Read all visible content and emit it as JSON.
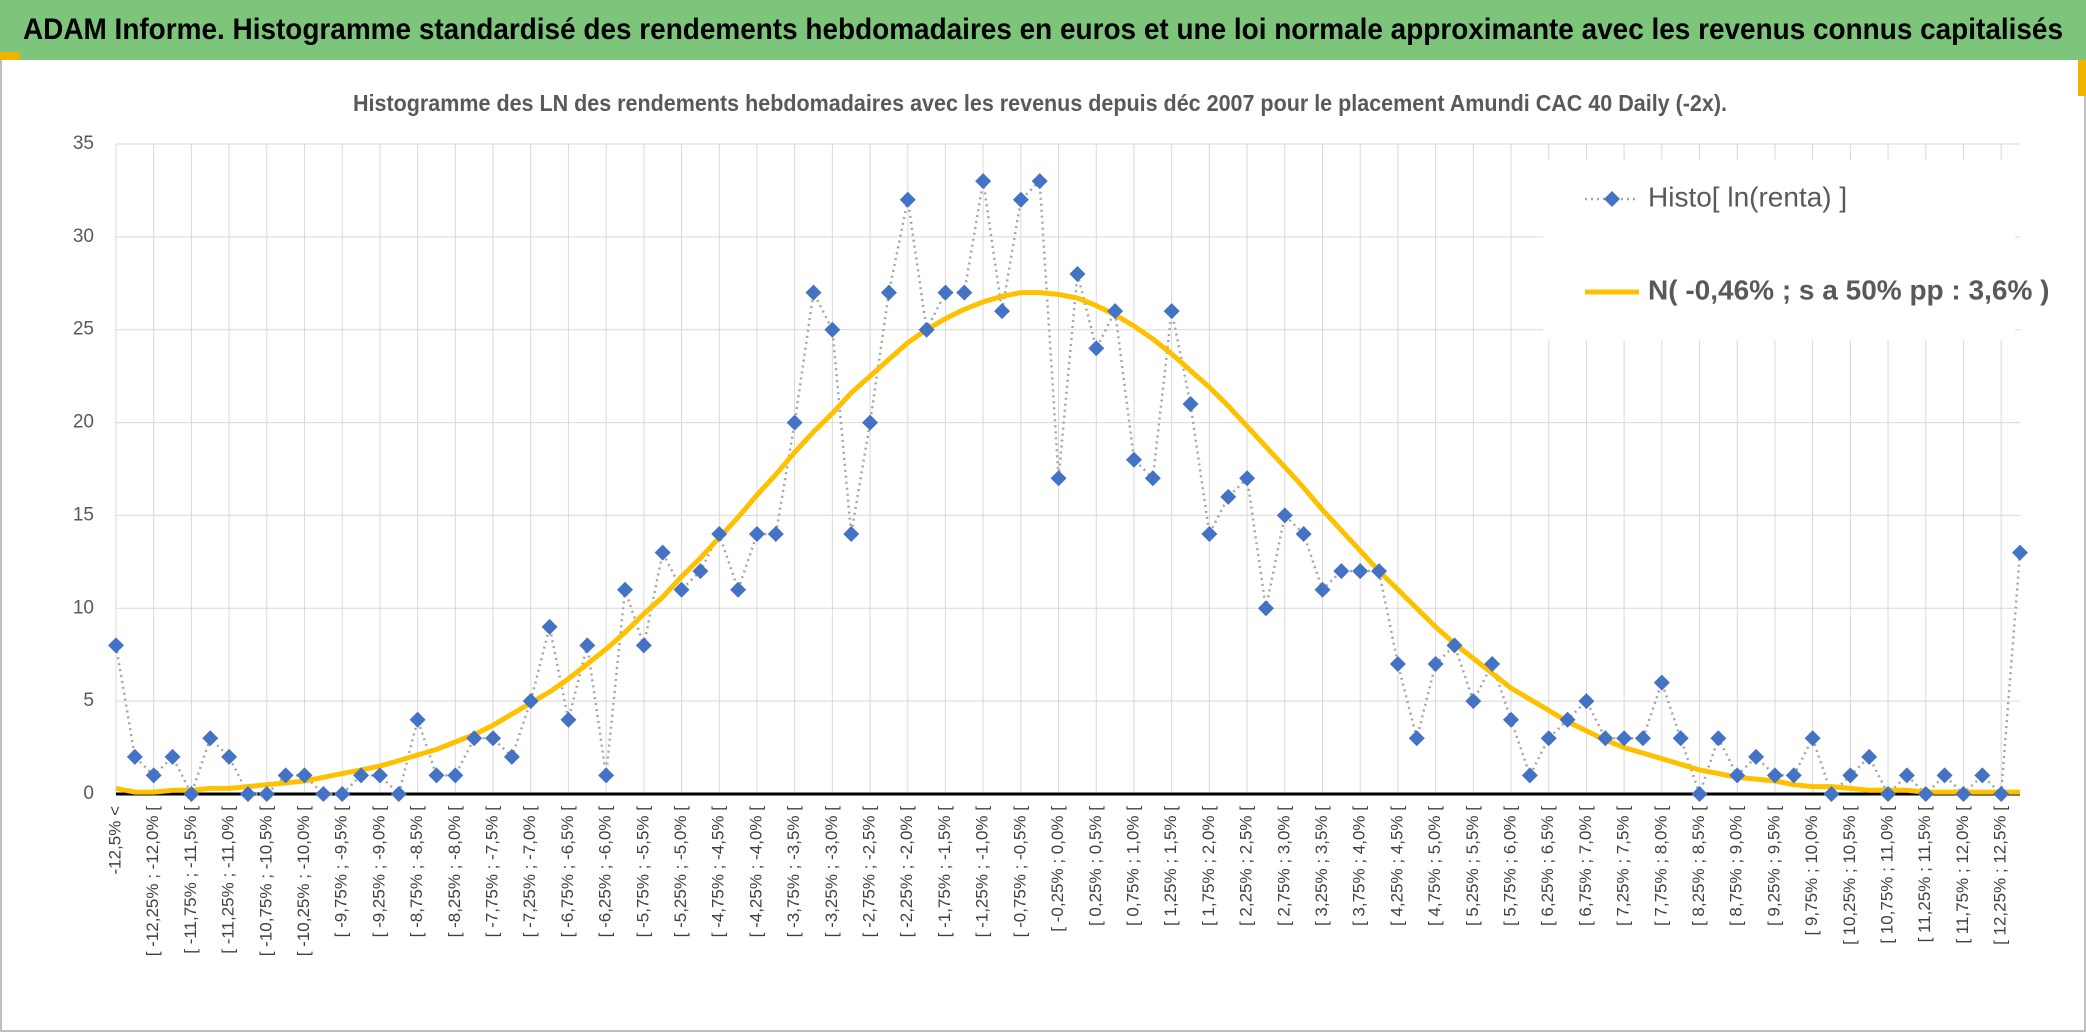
{
  "chart_data": {
    "type": "line",
    "banner": "ADAM Informe. Histogramme standardisé des rendements hebdomadaires en euros et une loi normale approximante avec les revenus connus capitalisés",
    "title": "Histogramme des LN des rendements hebdomadaires avec les revenus depuis déc 2007 pour le placement Amundi CAC 40 Daily (-2x).",
    "categories": [
      "-12,5% <",
      null,
      "[ -12,25% ; -12,0% [",
      null,
      "[ -11,75% ; -11,5% [",
      null,
      "[ -11,25% ; -11,0% [",
      null,
      "[ -10,75% ; -10,5% [",
      null,
      "[ -10,25% ; -10,0% [",
      null,
      "[ -9,75% ; -9,5% [",
      null,
      "[ -9,25% ; -9,0% [",
      null,
      "[ -8,75% ; -8,5% [",
      null,
      "[ -8,25% ; -8,0% [",
      null,
      "[ -7,75% ; -7,5% [",
      null,
      "[ -7,25% ; -7,0% [",
      null,
      "[ -6,75% ; -6,5% [",
      null,
      "[ -6,25% ; -6,0% [",
      null,
      "[ -5,75% ; -5,5% [",
      null,
      "[ -5,25% ; -5,0% [",
      null,
      "[ -4,75% ; -4,5% [",
      null,
      "[ -4,25% ; -4,0% [",
      null,
      "[ -3,75% ; -3,5% [",
      null,
      "[ -3,25% ; -3,0% [",
      null,
      "[ -2,75% ; -2,5% [",
      null,
      "[ -2,25% ; -2,0% [",
      null,
      "[ -1,75% ; -1,5% [",
      null,
      "[ -1,25% ; -1,0% [",
      null,
      "[ -0,75% ; -0,5% [",
      null,
      "[ -0,25% ; 0,0% [",
      null,
      "[ 0,25% ; 0,5% [",
      null,
      "[ 0,75% ; 1,0% [",
      null,
      "[ 1,25% ; 1,5% [",
      null,
      "[ 1,75% ; 2,0% [",
      null,
      "[ 2,25% ; 2,5% [",
      null,
      "[ 2,75% ; 3,0% [",
      null,
      "[ 3,25% ; 3,5% [",
      null,
      "[ 3,75% ; 4,0% [",
      null,
      "[ 4,25% ; 4,5% [",
      null,
      "[ 4,75% ; 5,0% [",
      null,
      "[ 5,25% ; 5,5% [",
      null,
      "[ 5,75% ; 6,0% [",
      null,
      "[ 6,25% ; 6,5% [",
      null,
      "[ 6,75% ; 7,0% [",
      null,
      "[ 7,25% ; 7,5% [",
      null,
      "[ 7,75% ; 8,0% [",
      null,
      "[ 8,25% ; 8,5% [",
      null,
      "[ 8,75% ; 9,0% [",
      null,
      "[ 9,25% ; 9,5% [",
      null,
      "[ 9,75% ; 10,0% [",
      null,
      "[ 10,25% ; 10,5% [",
      null,
      "[ 10,75% ; 11,0% [",
      null,
      "[ 11,25% ; 11,5% [",
      null,
      "[ 11,75% ; 12,0% [",
      null,
      "[ 12,25% ; 12,5% [",
      null
    ],
    "series": [
      {
        "name": "Histo[ ln(renta) ]",
        "color": "#4472c4",
        "line_color": "#a5a5a5",
        "values": [
          8,
          2,
          1,
          2,
          0,
          3,
          2,
          0,
          0,
          1,
          1,
          0,
          0,
          1,
          1,
          0,
          4,
          1,
          1,
          3,
          3,
          2,
          5,
          9,
          4,
          8,
          1,
          11,
          8,
          13,
          11,
          12,
          14,
          11,
          14,
          14,
          20,
          27,
          25,
          14,
          20,
          27,
          32,
          25,
          27,
          27,
          33,
          26,
          32,
          33,
          17,
          28,
          24,
          26,
          18,
          17,
          26,
          21,
          14,
          16,
          17,
          10,
          15,
          14,
          11,
          12,
          12,
          12,
          7,
          3,
          7,
          8,
          5,
          7,
          4,
          1,
          3,
          4,
          5,
          3,
          3,
          3,
          6,
          3,
          0,
          3,
          1,
          2,
          1,
          1,
          3,
          0,
          1,
          2,
          0,
          1,
          0,
          1,
          0,
          1,
          0,
          13
        ]
      },
      {
        "name": "N( -0,46% ; s a 50% pp : 3,6% )",
        "color": "#ffc000",
        "values": [
          0.3,
          0.1,
          0.1,
          0.2,
          0.2,
          0.3,
          0.3,
          0.4,
          0.5,
          0.6,
          0.7,
          0.9,
          1.1,
          1.3,
          1.5,
          1.8,
          2.1,
          2.4,
          2.8,
          3.2,
          3.7,
          4.3,
          4.9,
          5.5,
          6.2,
          7.0,
          7.8,
          8.7,
          9.7,
          10.6,
          11.7,
          12.7,
          13.8,
          14.9,
          16.1,
          17.2,
          18.4,
          19.5,
          20.5,
          21.6,
          22.5,
          23.4,
          24.3,
          25.0,
          25.6,
          26.1,
          26.5,
          26.8,
          27.0,
          27.0,
          26.9,
          26.7,
          26.3,
          25.8,
          25.2,
          24.5,
          23.7,
          22.8,
          21.9,
          20.9,
          19.8,
          18.7,
          17.6,
          16.5,
          15.3,
          14.2,
          13.1,
          12.0,
          11.0,
          10.0,
          9.0,
          8.1,
          7.3,
          6.5,
          5.7,
          5.1,
          4.5,
          3.9,
          3.4,
          2.9,
          2.5,
          2.2,
          1.9,
          1.6,
          1.3,
          1.1,
          0.9,
          0.8,
          0.7,
          0.5,
          0.4,
          0.4,
          0.3,
          0.2,
          0.2,
          0.2,
          0.1,
          0.1,
          0.1,
          0.1,
          0.1,
          0.1
        ]
      }
    ],
    "ylim": [
      0,
      35
    ],
    "yticks": [
      0,
      5,
      10,
      15,
      20,
      25,
      30,
      35
    ],
    "grid": true,
    "legend": "upper right"
  }
}
